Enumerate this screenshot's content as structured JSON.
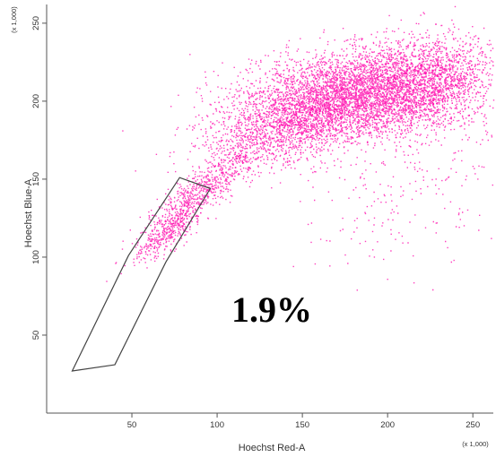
{
  "chart_data": {
    "type": "scatter",
    "title": "",
    "xlabel": "Hoechst Red-A",
    "ylabel": "Hoechst Blue-A",
    "x_multiplier": "(x 1,000)",
    "y_multiplier": "(x 1,000)",
    "xlim": [
      0,
      262
    ],
    "ylim": [
      0,
      262
    ],
    "x_ticks": [
      50,
      100,
      150,
      200,
      250
    ],
    "y_ticks": [
      50,
      100,
      150,
      200,
      250
    ],
    "grid": false,
    "point_color": "#ff00aa",
    "gate": {
      "label": "1.9%",
      "vertices": [
        [
          15,
          27
        ],
        [
          40,
          31
        ],
        [
          70,
          97
        ],
        [
          96,
          144
        ],
        [
          78,
          151
        ],
        [
          48,
          101
        ]
      ]
    },
    "density_clusters": [
      {
        "cx": 185,
        "cy": 205,
        "sx": 34,
        "sy": 14,
        "rho": 0.2,
        "weight": 0.52
      },
      {
        "cx": 140,
        "cy": 183,
        "sx": 26,
        "sy": 14,
        "rho": 0.5,
        "weight": 0.16
      },
      {
        "cx": 225,
        "cy": 218,
        "sx": 20,
        "sy": 13,
        "rho": 0.1,
        "weight": 0.1
      },
      {
        "cx": 90,
        "cy": 142,
        "sx": 15,
        "sy": 13,
        "rho": 0.85,
        "weight": 0.07
      },
      {
        "cx": 70,
        "cy": 115,
        "sx": 10,
        "sy": 10,
        "rho": 0.8,
        "weight": 0.04
      },
      {
        "cx": 210,
        "cy": 150,
        "sx": 35,
        "sy": 28,
        "rho": 0.3,
        "weight": 0.03
      }
    ]
  }
}
